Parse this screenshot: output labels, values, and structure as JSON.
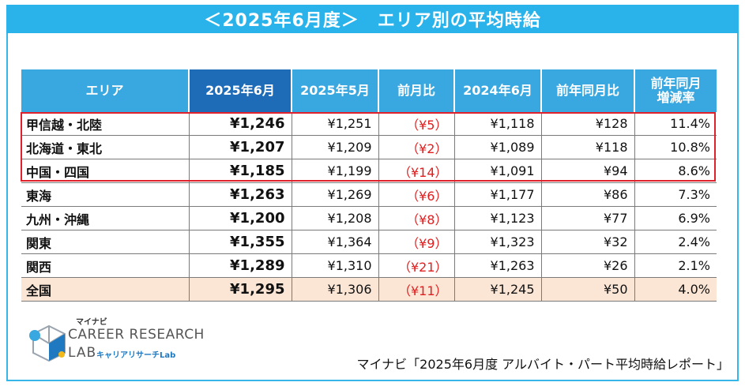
{
  "banner": {
    "title": "＜2025年6月度＞　エリア別の平均時給"
  },
  "table": {
    "headers": {
      "area": "エリア",
      "cur": "2025年6月",
      "prev_month": "2025年5月",
      "mom": "前月比",
      "prev_year": "2024年6月",
      "yoy": "前年同月比",
      "yoy_rate_1": "前年同月",
      "yoy_rate_2": "増減率"
    },
    "rows": [
      {
        "area": "甲信越・北陸",
        "cur": "¥1,246",
        "prev_month": "¥1,251",
        "mom": "（¥5）",
        "prev_year": "¥1,118",
        "yoy": "¥128",
        "rate": "11.4%"
      },
      {
        "area": "北海道・東北",
        "cur": "¥1,207",
        "prev_month": "¥1,209",
        "mom": "（¥2）",
        "prev_year": "¥1,089",
        "yoy": "¥118",
        "rate": "10.8%"
      },
      {
        "area": "中国・四国",
        "cur": "¥1,185",
        "prev_month": "¥1,199",
        "mom": "（¥14）",
        "prev_year": "¥1,091",
        "yoy": "¥94",
        "rate": "8.6%"
      },
      {
        "area": "東海",
        "cur": "¥1,263",
        "prev_month": "¥1,269",
        "mom": "（¥6）",
        "prev_year": "¥1,177",
        "yoy": "¥86",
        "rate": "7.3%"
      },
      {
        "area": "九州・沖縄",
        "cur": "¥1,200",
        "prev_month": "¥1,208",
        "mom": "（¥8）",
        "prev_year": "¥1,123",
        "yoy": "¥77",
        "rate": "6.9%"
      },
      {
        "area": "関東",
        "cur": "¥1,355",
        "prev_month": "¥1,364",
        "mom": "（¥9）",
        "prev_year": "¥1,323",
        "yoy": "¥32",
        "rate": "2.4%"
      },
      {
        "area": "関西",
        "cur": "¥1,289",
        "prev_month": "¥1,310",
        "mom": "（¥21）",
        "prev_year": "¥1,263",
        "yoy": "¥26",
        "rate": "2.1%"
      },
      {
        "area": "全国",
        "cur": "¥1,295",
        "prev_month": "¥1,306",
        "mom": "（¥11）",
        "prev_year": "¥1,245",
        "yoy": "¥50",
        "rate": "4.0%"
      }
    ]
  },
  "logo": {
    "small": "マイナビ",
    "main": "CAREER RESEARCH",
    "lab": "LAB",
    "sub": "キャリアリサーチLab"
  },
  "source": "マイナビ「2025年6月度 アルバイト・パート平均時給レポート」",
  "colors": {
    "banner": "#29b3ea",
    "header": "#3aa8e0",
    "header_current": "#1e6bb8",
    "negative": "#e01e1e",
    "highlight_border": "#e0202a",
    "total_row": "#fbe6d6"
  }
}
